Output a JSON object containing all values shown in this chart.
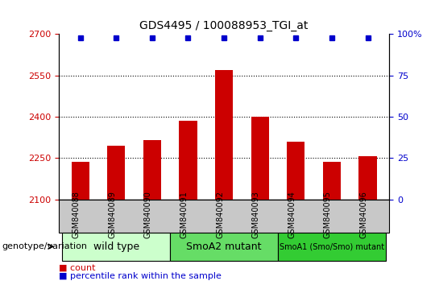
{
  "title": "GDS4495 / 100088953_TGI_at",
  "samples": [
    "GSM840088",
    "GSM840089",
    "GSM840090",
    "GSM840091",
    "GSM840092",
    "GSM840093",
    "GSM840094",
    "GSM840095",
    "GSM840096"
  ],
  "counts": [
    2237,
    2295,
    2315,
    2385,
    2570,
    2400,
    2310,
    2237,
    2258
  ],
  "percentile_rank": 98,
  "bar_color": "#cc0000",
  "dot_color": "#0000cc",
  "ylim_left": [
    2100,
    2700
  ],
  "ylim_right": [
    0,
    100
  ],
  "yticks_left": [
    2100,
    2250,
    2400,
    2550,
    2700
  ],
  "yticks_right": [
    0,
    25,
    50,
    75,
    100
  ],
  "groups": [
    {
      "label": "wild type",
      "start": 0,
      "end": 3,
      "color": "#ccffcc",
      "fontsize": 9
    },
    {
      "label": "SmoA2 mutant",
      "start": 3,
      "end": 6,
      "color": "#66dd66",
      "fontsize": 9
    },
    {
      "label": "SmoA1 (Smo/Smo) mutant",
      "start": 6,
      "end": 9,
      "color": "#33cc33",
      "fontsize": 7
    }
  ],
  "group_label_prefix": "genotype/variation",
  "legend_count_label": "count",
  "legend_percentile_label": "percentile rank within the sample",
  "dotted_lines": [
    2250,
    2400,
    2550
  ],
  "bar_width": 0.5,
  "tick_color_left": "#cc0000",
  "tick_color_right": "#0000cc",
  "sample_fontsize": 7,
  "tick_fontsize": 8,
  "title_fontsize": 10,
  "legend_fontsize": 8,
  "group_label_fontsize": 8
}
